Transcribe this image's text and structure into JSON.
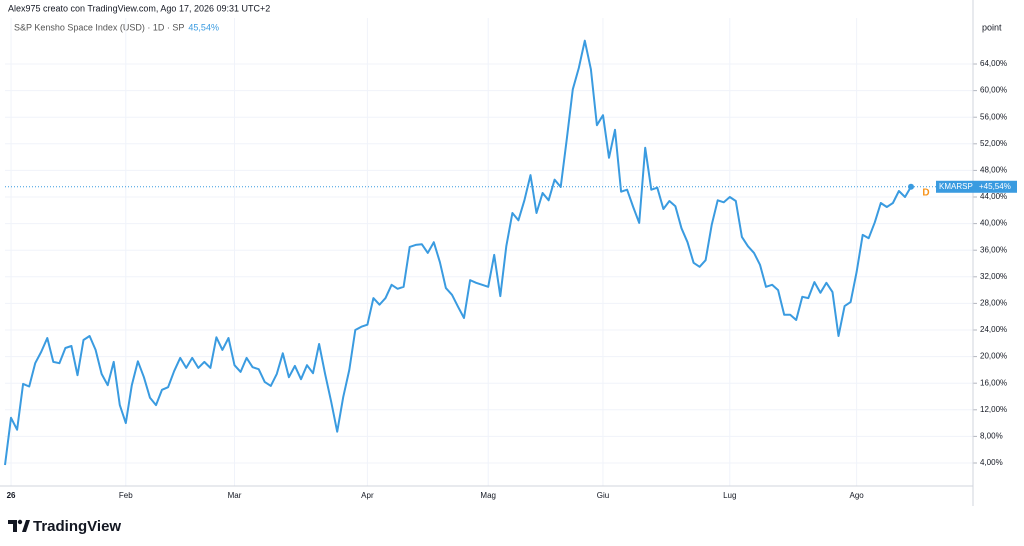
{
  "header": {
    "attribution": "Alex975 creato con TradingView.com, Ago 17, 2026 09:31 UTC+2",
    "logo": "TradingView"
  },
  "chart_data": {
    "type": "line",
    "title": "S&P Kensho Space Index (USD) · 1D · SP",
    "change_label": "45,54%",
    "axis_unit": "point",
    "ticker": "KMARSP",
    "last_label": "+45,54%",
    "marker": "D",
    "grid": true,
    "color": "#3a9be0",
    "categories": [
      null,
      "26",
      null,
      null,
      null,
      null,
      null,
      null,
      null,
      null,
      null,
      null,
      null,
      null,
      null,
      null,
      null,
      null,
      null,
      null,
      "Feb",
      null,
      null,
      null,
      null,
      null,
      null,
      null,
      null,
      null,
      null,
      null,
      null,
      null,
      null,
      null,
      null,
      null,
      "Mar",
      null,
      null,
      null,
      null,
      null,
      null,
      null,
      null,
      null,
      null,
      null,
      null,
      null,
      null,
      null,
      null,
      null,
      null,
      null,
      null,
      null,
      "Apr",
      null,
      null,
      null,
      null,
      null,
      null,
      null,
      null,
      null,
      null,
      null,
      null,
      null,
      null,
      null,
      null,
      null,
      null,
      null,
      "Mag",
      null,
      null,
      null,
      null,
      null,
      null,
      null,
      null,
      null,
      null,
      null,
      null,
      null,
      null,
      null,
      null,
      null,
      null,
      "Giu",
      null,
      null,
      null,
      null,
      null,
      null,
      null,
      null,
      null,
      null,
      null,
      null,
      null,
      null,
      null,
      null,
      null,
      null,
      null,
      null,
      "Lug",
      null,
      null,
      null,
      null,
      null,
      null,
      null,
      null,
      null,
      null,
      null,
      null,
      null,
      null,
      null,
      null,
      null,
      null,
      null,
      null,
      "Ago",
      null,
      null,
      null,
      null,
      null,
      null,
      null,
      null,
      null
    ],
    "values": [
      3.7,
      10.8,
      9,
      15.9,
      15.5,
      19,
      20.7,
      22.8,
      19.2,
      19,
      21.3,
      21.6,
      17.2,
      22.5,
      23.1,
      21,
      17.4,
      15.7,
      19.2,
      12.7,
      10,
      15.7,
      19.3,
      16.9,
      13.8,
      12.7,
      15,
      15.4,
      17.8,
      19.8,
      18.3,
      19.8,
      18.3,
      19.2,
      18.3,
      22.9,
      21,
      22.8,
      18.7,
      17.7,
      19.8,
      18.4,
      18.1,
      16.2,
      15.6,
      17.4,
      20.5,
      16.9,
      18.6,
      16.6,
      18.7,
      17.5,
      21.9,
      17.4,
      13.2,
      8.7,
      13.9,
      18,
      24,
      24.5,
      24.8,
      28.8,
      27.8,
      28.8,
      30.8,
      30.2,
      30.5,
      36.5,
      36.8,
      36.9,
      35.6,
      37.2,
      34.2,
      30.3,
      29.3,
      27.5,
      25.8,
      31.5,
      31.1,
      30.8,
      30.5,
      35.3,
      29.1,
      36.6,
      41.6,
      40.5,
      43.5,
      47.3,
      41.6,
      44.6,
      43.5,
      46.6,
      45.5,
      52.6,
      60.2,
      63.4,
      67.5,
      63.2,
      54.8,
      56.3,
      49.9,
      54.1,
      44.8,
      45.1,
      42.5,
      40.1,
      51.4,
      45.1,
      45.4,
      42.2,
      43.4,
      42.6,
      39.3,
      37.2,
      34.1,
      33.5,
      34.5,
      39.8,
      43.5,
      43.2,
      44,
      43.4,
      38,
      36.6,
      35.6,
      33.8,
      30.5,
      30.8,
      30,
      26.3,
      26.3,
      25.5,
      29,
      28.8,
      31.2,
      29.6,
      31.1,
      29.7,
      23.1,
      27.6,
      28.2,
      32.7,
      38.3,
      37.8,
      40.2,
      43.1,
      42.5,
      43.1,
      44.9,
      44,
      45.54
    ],
    "ylim": [
      0.54,
      70.92
    ],
    "yticks": [
      {
        "value": 4,
        "label": "4,00%"
      },
      {
        "value": 8,
        "label": "8,00%"
      },
      {
        "value": 12,
        "label": "12,00%"
      },
      {
        "value": 16,
        "label": "16,00%"
      },
      {
        "value": 20,
        "label": "20,00%"
      },
      {
        "value": 24,
        "label": "24,00%"
      },
      {
        "value": 28,
        "label": "28,00%"
      },
      {
        "value": 32,
        "label": "32,00%"
      },
      {
        "value": 36,
        "label": "36,00%"
      },
      {
        "value": 40,
        "label": "40,00%"
      },
      {
        "value": 44,
        "label": "44,00%"
      },
      {
        "value": 48,
        "label": "48,00%"
      },
      {
        "value": 52,
        "label": "52,00%"
      },
      {
        "value": 56,
        "label": "56,00%"
      },
      {
        "value": 60,
        "label": "60,00%"
      },
      {
        "value": 64,
        "label": "64,00%"
      }
    ]
  }
}
